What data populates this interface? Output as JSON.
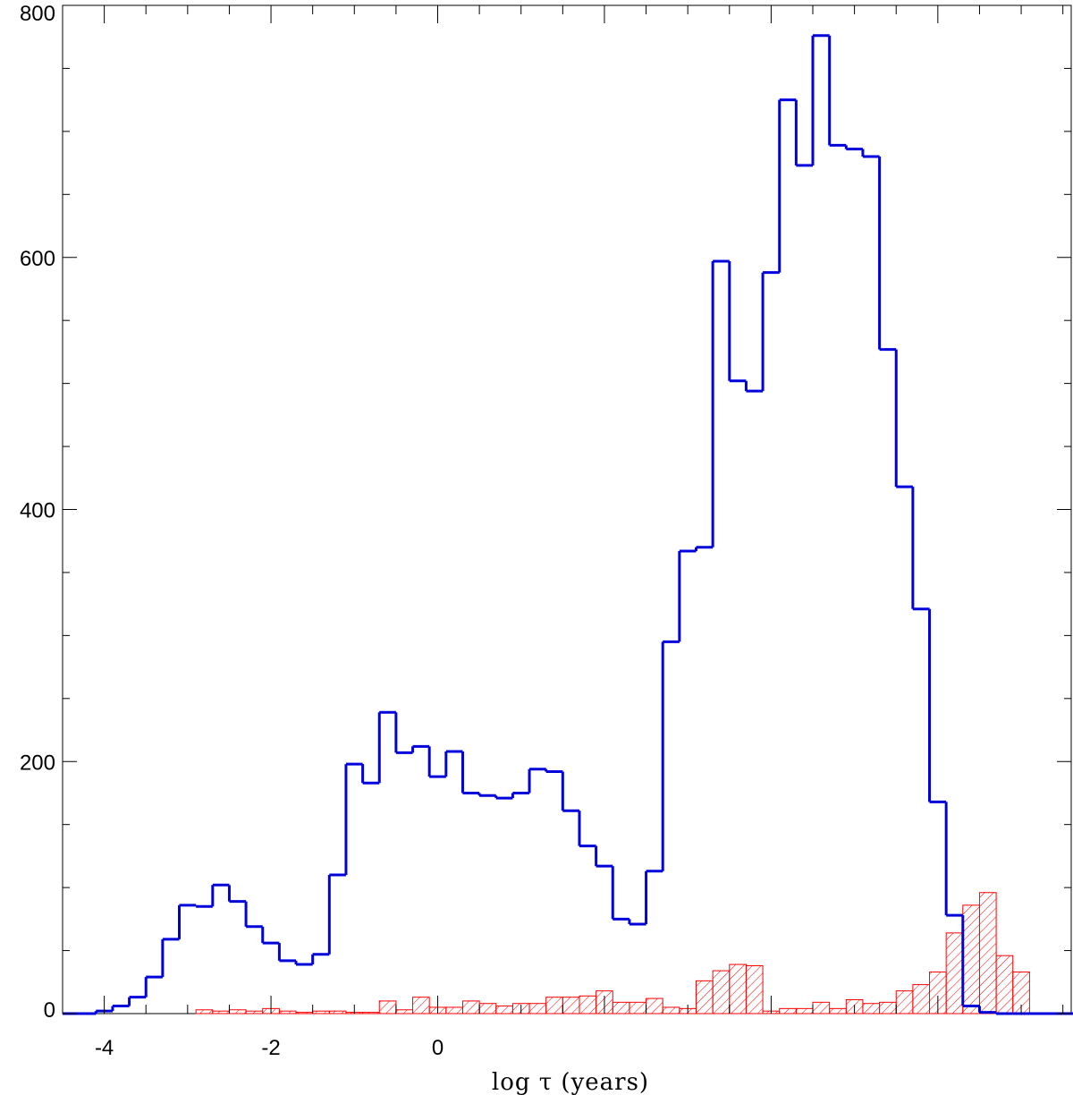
{
  "chart_data": {
    "type": "bar",
    "title": "",
    "xlabel": "log τ (years)",
    "ylabel": "",
    "xlim": [
      -4.5,
      7.6
    ],
    "ylim": [
      0,
      800
    ],
    "grid": false,
    "x_ticks": [
      {
        "value": -4,
        "label": "-4"
      },
      {
        "value": -2,
        "label": "-2"
      },
      {
        "value": 0,
        "label": "0"
      }
    ],
    "y_ticks": [
      {
        "value": 0,
        "label": "0"
      },
      {
        "value": 200,
        "label": "200"
      },
      {
        "value": 400,
        "label": "400"
      },
      {
        "value": 600,
        "label": "600"
      },
      {
        "value": 800,
        "label": "800"
      }
    ],
    "bin_start": -4.5,
    "bin_width": 0.2,
    "series": [
      {
        "style": "step-outline",
        "color": "#0000dd",
        "values": [
          0,
          0,
          2,
          6,
          13,
          29,
          59,
          86,
          85,
          102,
          89,
          69,
          56,
          42,
          39,
          47,
          110,
          198,
          183,
          239,
          207,
          212,
          188,
          208,
          175,
          173,
          171,
          175,
          194,
          192,
          161,
          133,
          117,
          75,
          71,
          113,
          295,
          367,
          370,
          597,
          502,
          494,
          588,
          725,
          673,
          776,
          689,
          686,
          680,
          527,
          418,
          321,
          168,
          78,
          6,
          1,
          0,
          0,
          0,
          0,
          0
        ]
      },
      {
        "style": "hatched",
        "color": "#ff0000",
        "values": [
          0,
          0,
          0,
          0,
          0,
          0,
          0,
          0,
          3,
          2,
          3,
          2,
          4,
          2,
          1,
          2,
          2,
          1,
          1,
          10,
          3,
          13,
          5,
          5,
          10,
          8,
          6,
          8,
          8,
          13,
          13,
          14,
          18,
          9,
          9,
          12,
          5,
          4,
          26,
          34,
          39,
          38,
          2,
          4,
          4,
          9,
          4,
          11,
          8,
          9,
          18,
          23,
          33,
          64,
          86,
          96,
          46,
          33,
          0,
          0,
          0
        ]
      }
    ]
  }
}
